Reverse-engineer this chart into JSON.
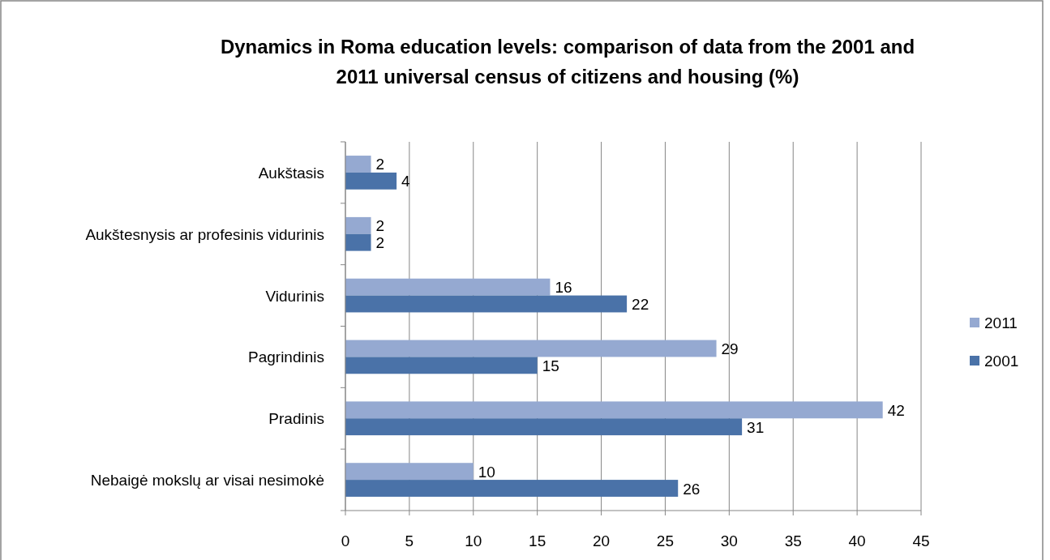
{
  "chart_data": {
    "type": "bar",
    "orientation": "horizontal",
    "title": "Dynamics in Roma education levels: comparison of data from the 2001 and 2011 universal census of citizens and housing (%)",
    "categories": [
      "Aukštasis",
      "Aukštesnysis ar profesinis vidurinis",
      "Vidurinis",
      "Pagrindinis",
      "Pradinis",
      "Nebaigė mokslų ar visai nesimokė"
    ],
    "series": [
      {
        "name": "2011",
        "color": "#95a9d1",
        "values": [
          2,
          2,
          16,
          29,
          42,
          10
        ]
      },
      {
        "name": "2001",
        "color": "#4a72a8",
        "values": [
          4,
          2,
          22,
          15,
          31,
          26
        ]
      }
    ],
    "xlim": [
      0,
      45
    ],
    "xticks": [
      0,
      5,
      10,
      15,
      20,
      25,
      30,
      35,
      40,
      45
    ],
    "grid": "x",
    "legend": "right",
    "data_labels": true
  }
}
